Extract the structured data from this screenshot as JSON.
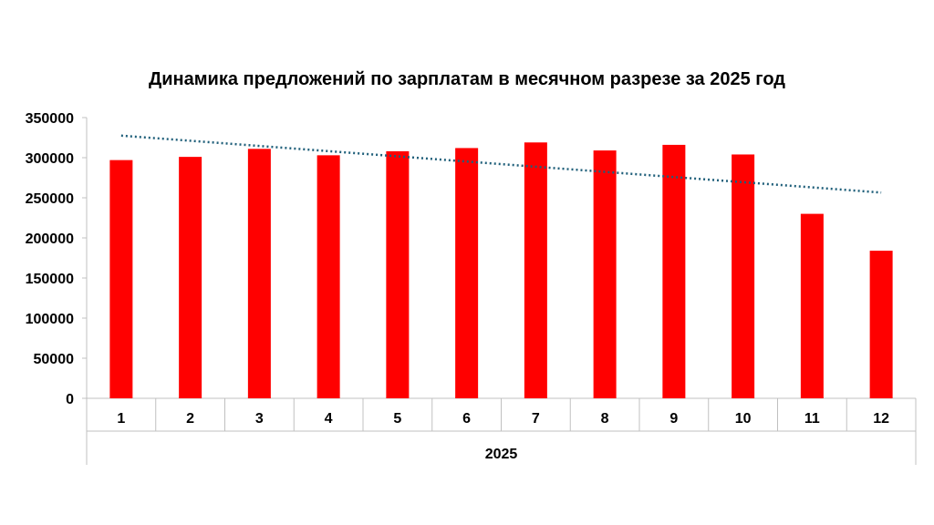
{
  "chart_data": {
    "type": "bar",
    "title": "Динамика предложений по зарплатам в месячном разрезе за 2025 год",
    "categories": [
      "1",
      "2",
      "3",
      "4",
      "5",
      "6",
      "7",
      "8",
      "9",
      "10",
      "11",
      "12"
    ],
    "group_label": "2025",
    "values": [
      297000,
      301000,
      311000,
      303000,
      308000,
      312000,
      319000,
      309000,
      316000,
      304000,
      230000,
      184000
    ],
    "trendline": {
      "type": "linear",
      "style": "dotted",
      "start_value": 327500,
      "end_value": 256500
    },
    "ylim": [
      0,
      350000
    ],
    "yticks": [
      "0",
      "50000",
      "100000",
      "150000",
      "200000",
      "250000",
      "300000",
      "350000"
    ],
    "xlabel": "",
    "ylabel": "",
    "grid": false,
    "legend": "none",
    "colors": {
      "bar": "#ff0000",
      "trendline": "#1f5f7a",
      "axis": "#c0c0c0",
      "text": "#000000"
    }
  }
}
